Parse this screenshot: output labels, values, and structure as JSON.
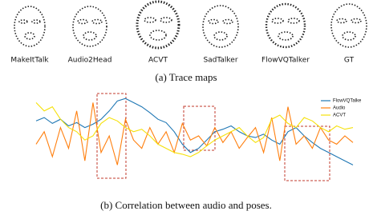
{
  "trace_maps": {
    "labels": [
      "MakeItTalk",
      "Audio2Head",
      "ACVT",
      "SadTalker",
      "FlowVQTalker",
      "GT"
    ],
    "caption": "(a) Trace maps"
  },
  "chart_data": {
    "type": "line",
    "caption": "(b) Correlation between audio and poses.",
    "ylim": [
      0,
      100
    ],
    "legend": "upper right",
    "series": [
      {
        "name": "FlowVQTalke",
        "color": "#1f77b4",
        "values": [
          68,
          72,
          65,
          70,
          62,
          66,
          60,
          64,
          70,
          80,
          92,
          95,
          90,
          85,
          78,
          70,
          66,
          55,
          40,
          30,
          35,
          45,
          55,
          58,
          62,
          55,
          50,
          48,
          52,
          45,
          40,
          55,
          60,
          50,
          42,
          35,
          30,
          25,
          20,
          15
        ]
      },
      {
        "name": "Audio",
        "color": "#ff7f0e",
        "values": [
          40,
          55,
          25,
          60,
          35,
          80,
          20,
          90,
          30,
          50,
          15,
          70,
          45,
          35,
          60,
          40,
          55,
          30,
          65,
          45,
          50,
          38,
          60,
          42,
          55,
          35,
          48,
          60,
          30,
          72,
          20,
          85,
          40,
          50,
          35,
          60,
          45,
          40,
          50,
          42
        ]
      },
      {
        "name": "ACVT",
        "color": "#f5e10a",
        "values": [
          90,
          80,
          85,
          70,
          60,
          55,
          45,
          50,
          65,
          72,
          68,
          60,
          55,
          58,
          50,
          40,
          35,
          30,
          28,
          25,
          30,
          38,
          45,
          50,
          55,
          60,
          50,
          42,
          48,
          70,
          75,
          65,
          60,
          72,
          68,
          60,
          55,
          62,
          58,
          60
        ]
      }
    ]
  }
}
